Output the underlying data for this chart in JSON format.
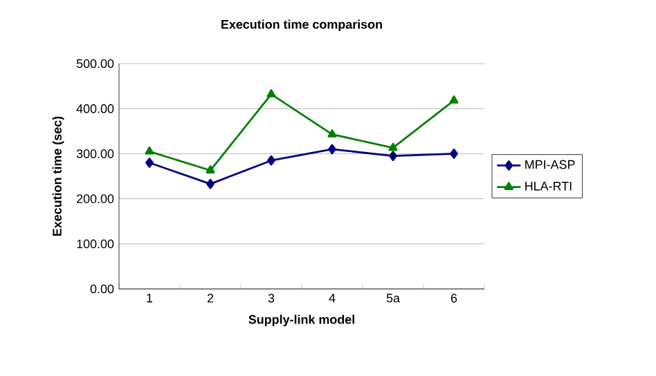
{
  "chart_data": {
    "type": "line",
    "title": "Execution time comparison",
    "xlabel": "Supply-link model",
    "ylabel": "Execution time (sec)",
    "categories": [
      "1",
      "2",
      "3",
      "4",
      "5a",
      "6"
    ],
    "series": [
      {
        "name": "MPI-ASP",
        "color": "#000080",
        "marker": "diamond",
        "values": [
          280,
          233,
          285,
          310,
          295,
          300
        ]
      },
      {
        "name": "HLA-RTI",
        "color": "#008000",
        "marker": "triangle",
        "values": [
          305,
          263,
          432,
          343,
          313,
          418
        ]
      }
    ],
    "ylim": [
      0,
      500
    ],
    "yticks": [
      {
        "value": 0,
        "label": "0.00"
      },
      {
        "value": 100,
        "label": "100.00"
      },
      {
        "value": 200,
        "label": "200.00"
      },
      {
        "value": 300,
        "label": "300.00"
      },
      {
        "value": 400,
        "label": "400.00"
      },
      {
        "value": 500,
        "label": "500.00"
      }
    ],
    "grid": "y",
    "legend": "right",
    "line_style": "solid"
  }
}
